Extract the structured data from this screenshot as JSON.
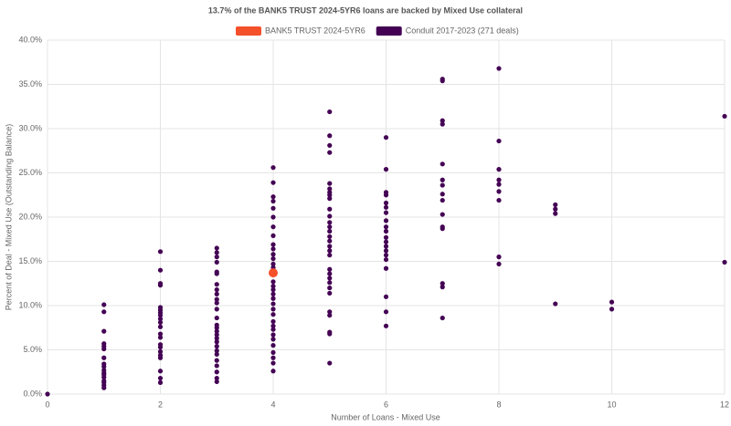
{
  "chart_data": {
    "type": "scatter",
    "title": "13.7% of the BANK5 TRUST 2024-5YR6 loans are backed by Mixed Use collateral",
    "x_label": "Number of Loans - Mixed Use",
    "y_label": "Percent of Deal - Mixed Use (Outstanding Balance)",
    "xlim": [
      0,
      12
    ],
    "xticks": [
      0,
      2,
      4,
      6,
      8,
      10,
      12
    ],
    "ylim": [
      0,
      40
    ],
    "yticks": [
      {
        "value": 0,
        "label": "0.0%"
      },
      {
        "value": 5,
        "label": "5.0%"
      },
      {
        "value": 10,
        "label": "10.0%"
      },
      {
        "value": 15,
        "label": "15.0%"
      },
      {
        "value": 20,
        "label": "20.0%"
      },
      {
        "value": 25,
        "label": "25.0%"
      },
      {
        "value": 30,
        "label": "30.0%"
      },
      {
        "value": 35,
        "label": "35.0%"
      },
      {
        "value": 40,
        "label": "40.0%"
      }
    ],
    "grid": true,
    "series": [
      {
        "name": "BANK5 TRUST 2024-5YR6",
        "color": "#f4502a",
        "x": [
          4
        ],
        "y": [
          13.7
        ]
      },
      {
        "name": "Conduit 2017-2023 (271 deals)",
        "color": "#440154",
        "x": [
          0,
          1,
          1,
          1,
          1,
          1,
          1,
          1,
          1,
          1,
          1,
          1,
          1,
          1,
          1,
          1,
          1,
          1,
          2,
          2,
          2,
          2,
          2,
          2,
          2,
          2,
          2,
          2,
          2,
          2,
          2,
          2,
          2,
          2,
          2,
          2,
          2,
          2,
          2,
          3,
          3,
          3,
          3,
          3,
          3,
          3,
          3,
          3,
          3,
          3,
          3,
          3,
          3,
          3,
          3,
          3,
          3,
          3,
          3,
          3,
          3,
          3,
          3,
          3,
          3,
          3,
          4,
          4,
          4,
          4,
          4,
          4,
          4,
          4,
          4,
          4,
          4,
          4,
          4,
          4,
          4,
          4,
          4,
          4,
          4,
          4,
          4,
          4,
          4,
          4,
          4,
          4,
          4,
          4,
          4,
          4,
          4,
          4,
          5,
          5,
          5,
          5,
          5,
          5,
          5,
          5,
          5,
          5,
          5,
          5,
          5,
          5,
          5,
          5,
          5,
          5,
          5,
          5,
          5,
          5,
          5,
          5,
          5,
          5,
          5,
          5,
          5,
          5,
          6,
          6,
          6,
          6,
          6,
          6,
          6,
          6,
          6,
          6,
          6,
          6,
          6,
          6,
          6,
          6,
          6,
          6,
          6,
          6,
          7,
          7,
          7,
          7,
          7,
          7,
          7,
          7,
          7,
          7,
          7,
          7,
          7,
          7,
          7,
          8,
          8,
          8,
          8,
          8,
          8,
          8,
          8,
          8,
          9,
          9,
          9,
          9,
          10,
          10,
          12,
          12
        ],
        "y": [
          0,
          10.1,
          9.3,
          7.1,
          5.7,
          5.4,
          5.1,
          4.1,
          3.4,
          3.1,
          2.7,
          2.4,
          2.2,
          1.9,
          1.5,
          1.3,
          1.0,
          0.7,
          16.1,
          14.0,
          12.5,
          12.3,
          9.8,
          9.5,
          9.2,
          8.9,
          8.5,
          8.1,
          7.6,
          6.8,
          6.4,
          5.6,
          5.3,
          4.8,
          4.4,
          4.1,
          2.6,
          1.8,
          1.3,
          16.5,
          16.0,
          15.5,
          14.9,
          13.8,
          13.6,
          12.4,
          11.8,
          11.3,
          10.7,
          10.3,
          9.6,
          8.6,
          7.8,
          7.5,
          7.1,
          6.7,
          6.3,
          5.9,
          5.4,
          4.9,
          4.5,
          3.8,
          3.2,
          2.5,
          1.8,
          1.4,
          25.6,
          23.9,
          22.3,
          21.8,
          21.0,
          20.0,
          18.9,
          17.9,
          16.9,
          16.4,
          15.8,
          15.3,
          14.7,
          14.3,
          12.7,
          12.2,
          11.8,
          11.3,
          10.8,
          10.2,
          9.6,
          9.0,
          8.2,
          7.7,
          7.3,
          6.7,
          6.2,
          5.5,
          4.7,
          4.1,
          3.5,
          2.6,
          31.9,
          29.2,
          28.1,
          27.3,
          23.8,
          23.2,
          22.8,
          22.5,
          22.1,
          20.9,
          20.1,
          19.4,
          18.9,
          18.4,
          17.8,
          17.3,
          16.7,
          16.2,
          15.7,
          14.1,
          13.6,
          13.1,
          12.6,
          12.0,
          11.4,
          9.3,
          8.9,
          7.0,
          6.8,
          3.5,
          29.0,
          25.4,
          22.8,
          22.5,
          21.6,
          21.1,
          20.5,
          19.6,
          18.9,
          18.4,
          17.7,
          17.2,
          16.7,
          16.2,
          15.7,
          15.2,
          14.2,
          11.0,
          9.3,
          7.7,
          35.6,
          35.4,
          30.9,
          30.5,
          26.0,
          24.2,
          23.6,
          22.6,
          21.9,
          20.3,
          18.9,
          18.7,
          12.5,
          12.1,
          8.6,
          36.8,
          28.6,
          25.4,
          24.2,
          23.7,
          22.9,
          21.9,
          15.5,
          14.7,
          21.4,
          20.9,
          20.4,
          10.2,
          10.4,
          9.6,
          31.4,
          14.9
        ]
      }
    ]
  }
}
